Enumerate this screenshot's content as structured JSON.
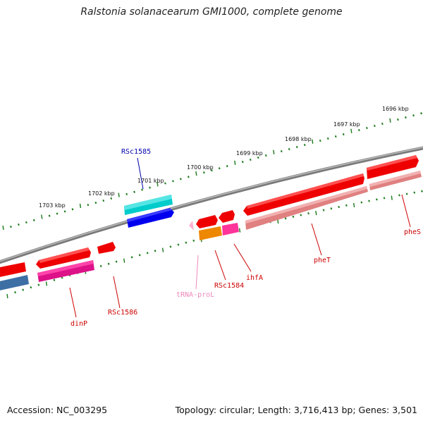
{
  "title": "Ralstonia solanacearum GMI1000, complete genome",
  "footer": {
    "accession": "Accession: NC_003295",
    "summary": "Topology: circular; Length: 3,716,413 bp; Genes: 3,501"
  },
  "colors": {
    "backbone": "#808080",
    "ticks": "#1a7a1a",
    "label_red": "#cc0000",
    "label_blue": "#0000aa",
    "label_pink": "#ee88bb"
  },
  "ruler_labels": [
    "1696 kbp",
    "1697 kbp",
    "1698 kbp",
    "1699 kbp",
    "1700 kbp",
    "1701 kbp",
    "1702 kbp",
    "1703 kbp"
  ],
  "genes": [
    {
      "name": "pheS",
      "color": "#ee0000",
      "strand": "+"
    },
    {
      "name": "pheT",
      "color": "#ee0000",
      "strand": "+"
    },
    {
      "name": "ihfA",
      "color": "#ee0000",
      "strand": "+"
    },
    {
      "name": "RSc1584",
      "color": "#ee0000",
      "strand": "+"
    },
    {
      "name": "tRNA-proL",
      "color": "#ffb0d0",
      "strand": "+"
    },
    {
      "name": "RSc1585",
      "color": "#00cccc",
      "strand": "-"
    },
    {
      "name": "RSc1586",
      "color": "#ee0000",
      "strand": "+"
    },
    {
      "name": "dinP",
      "color": "#ee0000",
      "strand": "+"
    }
  ],
  "gene_labels": {
    "pheS": "pheS",
    "pheT": "pheT",
    "ihfA": "ihfA",
    "RSc1584": "RSc1584",
    "tRNA_proL": "tRNA-proL",
    "RSc1585": "RSc1585",
    "RSc1586": "RSc1586",
    "dinP": "dinP"
  }
}
